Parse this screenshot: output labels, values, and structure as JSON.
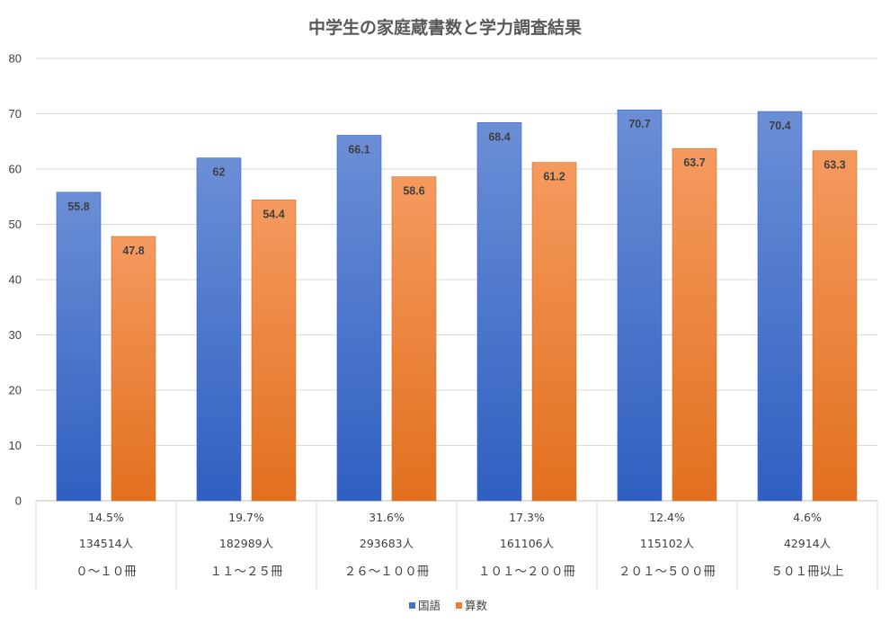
{
  "chart_data": {
    "type": "bar",
    "title": "中学生の家庭蔵書数と学力調査結果",
    "categories": [
      "０～１０冊",
      "１１～２５冊",
      "２６～１００冊",
      "１０１～２００冊",
      "２０１～５００冊",
      "５０１冊以上"
    ],
    "percent_row": [
      "14.5%",
      "19.7%",
      "31.6%",
      "17.3%",
      "12.4%",
      "4.6%"
    ],
    "count_row": [
      "134514人",
      "182989人",
      "293683人",
      "161106人",
      "115102人",
      "42914人"
    ],
    "series": [
      {
        "name": "国語",
        "values": [
          55.8,
          62,
          66.1,
          68.4,
          70.7,
          70.4
        ],
        "labels": [
          "55.8",
          "62",
          "66.1",
          "68.4",
          "70.7",
          "70.4"
        ],
        "color": "#4472c4"
      },
      {
        "name": "算数",
        "values": [
          47.8,
          54.4,
          58.6,
          61.2,
          63.7,
          63.3
        ],
        "labels": [
          "47.8",
          "54.4",
          "58.6",
          "61.2",
          "63.7",
          "63.3"
        ],
        "color": "#ed7d31"
      }
    ],
    "ylim": [
      0,
      80
    ],
    "yticks": [
      0,
      10,
      20,
      30,
      40,
      50,
      60,
      70,
      80
    ],
    "grid": true,
    "legend_position": "bottom"
  }
}
